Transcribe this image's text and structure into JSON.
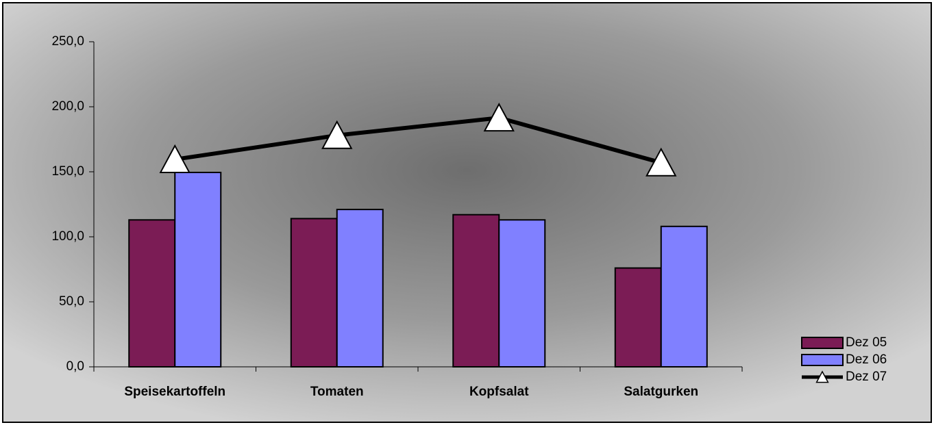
{
  "chart_data": {
    "type": "bar",
    "categories": [
      "Speisekartoffeln",
      "Tomaten",
      "Kopfsalat",
      "Salatgurken"
    ],
    "series": [
      {
        "name": "Dez 05",
        "type": "bar",
        "color": "#7b1c55",
        "values": [
          113,
          114,
          117,
          76
        ]
      },
      {
        "name": "Dez 06",
        "type": "bar",
        "color": "#8080ff",
        "values": [
          149.5,
          121,
          113,
          108
        ]
      },
      {
        "name": "Dez 07",
        "type": "line",
        "color": "#000000",
        "values": [
          159.5,
          178,
          191.5,
          157
        ]
      }
    ],
    "ylim": [
      0,
      250
    ],
    "yticks": [
      {
        "value": 0,
        "label": "0,0"
      },
      {
        "value": 50,
        "label": "50,0"
      },
      {
        "value": 100,
        "label": "100,0"
      },
      {
        "value": 150,
        "label": "150,0"
      },
      {
        "value": 200,
        "label": "200,0"
      },
      {
        "value": 250,
        "label": "250,0"
      }
    ],
    "legend": "right"
  }
}
